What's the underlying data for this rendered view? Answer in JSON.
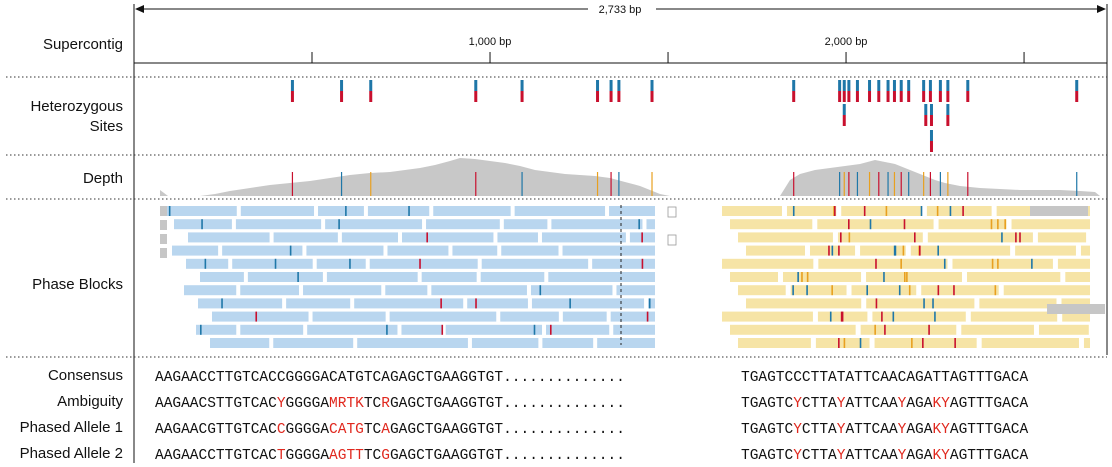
{
  "tracks": {
    "supercontig": "Supercontig",
    "heterozygous_sites": [
      "Heterozygous",
      "Sites"
    ],
    "depth": "Depth",
    "phase_blocks": "Phase Blocks",
    "consensus": "Consensus",
    "ambiguity": "Ambiguity",
    "phased_allele_1": "Phased Allele 1",
    "phased_allele_2": "Phased Allele 2"
  },
  "scale": {
    "total_label": "2,733 bp",
    "total_bp": 2733,
    "ticks": [
      {
        "bp": 500,
        "label": ""
      },
      {
        "bp": 1000,
        "label": "1,000 bp"
      },
      {
        "bp": 1500,
        "label": ""
      },
      {
        "bp": 2000,
        "label": "2,000 bp"
      },
      {
        "bp": 2500,
        "label": ""
      }
    ]
  },
  "colors": {
    "allele_a": "#1f77a8",
    "allele_b": "#c8102e",
    "phase_block_blue": "#b9d6ef",
    "phase_block_yellow": "#f6e4a6",
    "depth_gray": "#c8c8c8",
    "unphased_gray": "#c6c6c6",
    "highlight": "#e0281e",
    "variant_orange": "#e8a020"
  },
  "sequences": {
    "gap": "..............",
    "consensus": {
      "left": [
        "AAGAACCTTGTCACCGGGGACATGTCAGAGCTGAAGGTGT"
      ],
      "right": [
        "TGAGTCCCTTATATTCAACAGATTAGTTTGACA"
      ]
    },
    "ambiguity": {
      "left": [
        "AAGAACSTTGTCAC",
        "Y",
        "GGGGA",
        "MRTK",
        "TC",
        "R",
        "GAGCTGAAGGTGT"
      ],
      "right": [
        "TGAGTC",
        "Y",
        "CTTA",
        "Y",
        "ATTCAA",
        "Y",
        "AGA",
        "KY",
        "AGTTTGACA"
      ]
    },
    "phased_allele_1": {
      "left": [
        "AAGAACGTTGTCAC",
        "C",
        "GGGGA",
        "CATG",
        "TC",
        "A",
        "GAGCTGAAGGTGT"
      ],
      "right": [
        "TGAGTC",
        "Y",
        "CTTA",
        "Y",
        "ATTCAA",
        "Y",
        "AGA",
        "KY",
        "AGTTTGACA"
      ]
    },
    "phased_allele_2": {
      "left": [
        "AAGAACCTTGTCAC",
        "T",
        "GGGGA",
        "AGTT",
        "TC",
        "G",
        "GAGCTGAAGGTGT"
      ],
      "right": [
        "TGAGTC",
        "Y",
        "CTTA",
        "Y",
        "ATTCAA",
        "Y",
        "AGA",
        "KY",
        "AGTTTGACA"
      ]
    }
  },
  "het_sites": [
    {
      "bp": 445,
      "row": 0
    },
    {
      "bp": 583,
      "row": 0
    },
    {
      "bp": 665,
      "row": 0
    },
    {
      "bp": 960,
      "row": 0
    },
    {
      "bp": 1090,
      "row": 0
    },
    {
      "bp": 1302,
      "row": 0
    },
    {
      "bp": 1340,
      "row": 0
    },
    {
      "bp": 1362,
      "row": 0
    },
    {
      "bp": 1455,
      "row": 0
    },
    {
      "bp": 1853,
      "row": 0
    },
    {
      "bp": 1982,
      "row": 0
    },
    {
      "bp": 1995,
      "row": 0
    },
    {
      "bp": 2008,
      "row": 0
    },
    {
      "bp": 2032,
      "row": 0
    },
    {
      "bp": 2066,
      "row": 0
    },
    {
      "bp": 2092,
      "row": 0
    },
    {
      "bp": 2118,
      "row": 0
    },
    {
      "bp": 2136,
      "row": 0
    },
    {
      "bp": 2155,
      "row": 0
    },
    {
      "bp": 2176,
      "row": 0
    },
    {
      "bp": 2218,
      "row": 0
    },
    {
      "bp": 2237,
      "row": 0
    },
    {
      "bp": 2265,
      "row": 0
    },
    {
      "bp": 2286,
      "row": 0
    },
    {
      "bp": 2342,
      "row": 0
    },
    {
      "bp": 2648,
      "row": 0
    },
    {
      "bp": 1995,
      "row": 1
    },
    {
      "bp": 2224,
      "row": 1
    },
    {
      "bp": 2240,
      "row": 1
    },
    {
      "bp": 2286,
      "row": 1
    },
    {
      "bp": 2240,
      "row": 2
    }
  ]
}
